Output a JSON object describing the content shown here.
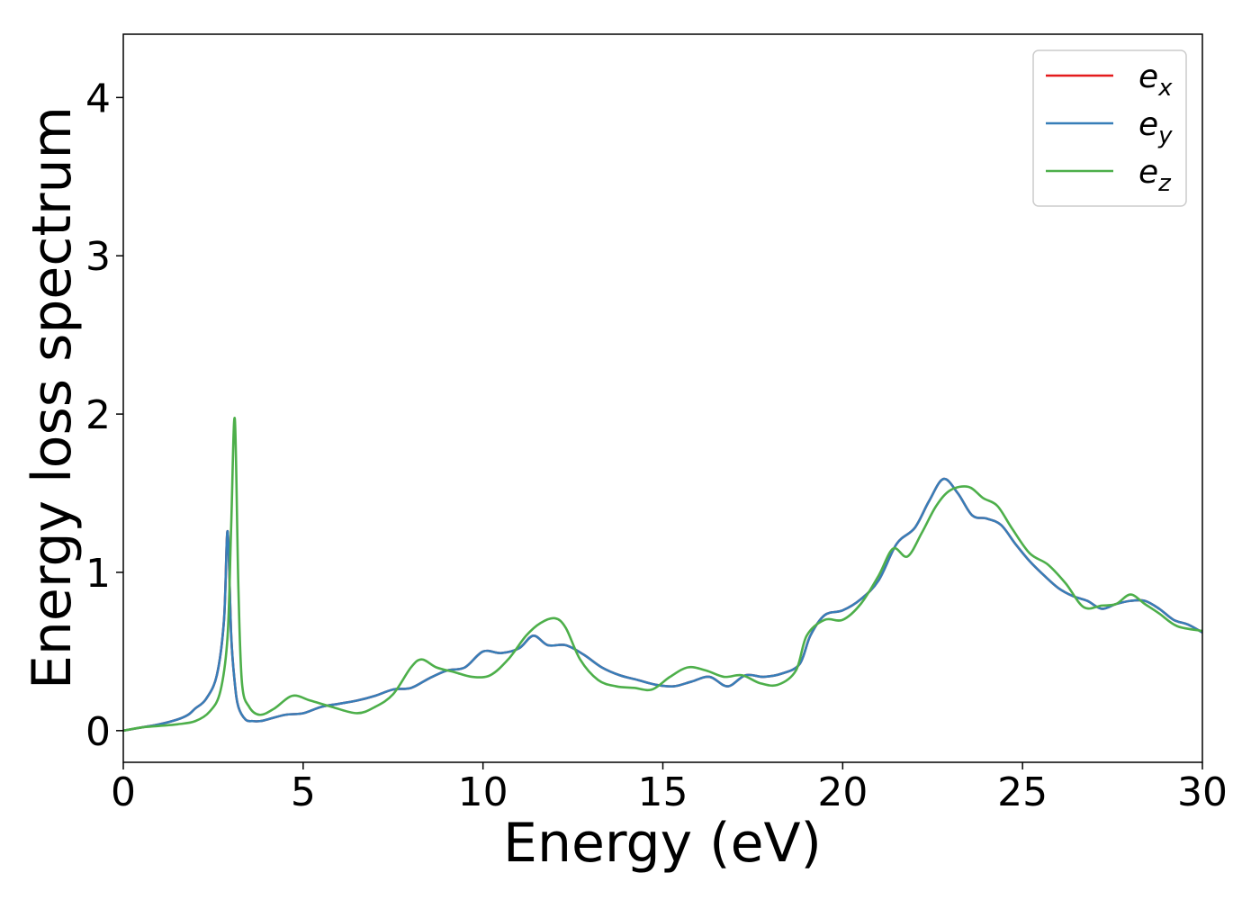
{
  "chart_data": {
    "type": "line",
    "xlabel": "Energy (eV)",
    "ylabel": "Energy loss spectrum",
    "xlim": [
      0,
      30
    ],
    "ylim": [
      -0.2,
      4.4
    ],
    "x_ticks": [
      0,
      5,
      10,
      15,
      20,
      25,
      30
    ],
    "y_ticks": [
      0,
      1,
      2,
      3,
      4
    ],
    "grid": false,
    "legend_placement": "top-right",
    "series": [
      {
        "name": "e_x",
        "label_base": "e",
        "label_sub": "x",
        "color": "#e41a1c",
        "x": [
          0,
          0.5,
          1,
          1.5,
          1.8,
          2.0,
          2.3,
          2.6,
          2.8,
          2.9,
          3.0,
          3.1,
          3.2,
          3.4,
          3.6,
          3.8,
          4.0,
          4.5,
          5.0,
          5.5,
          6.0,
          6.5,
          7.0,
          7.5,
          8.0,
          8.5,
          9.0,
          9.5,
          10.0,
          10.5,
          11.0,
          11.4,
          11.8,
          12.3,
          12.8,
          13.3,
          13.8,
          14.3,
          14.8,
          15.3,
          15.8,
          16.3,
          16.8,
          17.3,
          17.8,
          18.3,
          18.8,
          19.1,
          19.5,
          20.0,
          20.5,
          21.0,
          21.5,
          22.0,
          22.4,
          22.8,
          23.2,
          23.6,
          24.0,
          24.4,
          24.8,
          25.2,
          25.6,
          26.0,
          26.4,
          26.8,
          27.2,
          27.6,
          28.0,
          28.4,
          28.8,
          29.2,
          29.6,
          30.0
        ],
        "y": [
          0.0,
          0.02,
          0.04,
          0.07,
          0.1,
          0.14,
          0.2,
          0.35,
          0.7,
          1.26,
          0.6,
          0.3,
          0.15,
          0.07,
          0.06,
          0.06,
          0.07,
          0.1,
          0.11,
          0.15,
          0.17,
          0.19,
          0.22,
          0.26,
          0.27,
          0.33,
          0.38,
          0.4,
          0.5,
          0.49,
          0.52,
          0.6,
          0.54,
          0.54,
          0.48,
          0.4,
          0.35,
          0.32,
          0.29,
          0.28,
          0.31,
          0.34,
          0.28,
          0.35,
          0.34,
          0.36,
          0.42,
          0.6,
          0.73,
          0.76,
          0.83,
          0.95,
          1.18,
          1.28,
          1.45,
          1.59,
          1.5,
          1.36,
          1.34,
          1.3,
          1.18,
          1.07,
          0.98,
          0.9,
          0.85,
          0.82,
          0.77,
          0.8,
          0.82,
          0.82,
          0.77,
          0.7,
          0.67,
          0.62
        ]
      },
      {
        "name": "e_y",
        "label_base": "e",
        "label_sub": "y",
        "color": "#377eb8",
        "x": [
          0,
          0.5,
          1,
          1.5,
          1.8,
          2.0,
          2.3,
          2.6,
          2.8,
          2.9,
          3.0,
          3.1,
          3.2,
          3.4,
          3.6,
          3.8,
          4.0,
          4.5,
          5.0,
          5.5,
          6.0,
          6.5,
          7.0,
          7.5,
          8.0,
          8.5,
          9.0,
          9.5,
          10.0,
          10.5,
          11.0,
          11.4,
          11.8,
          12.3,
          12.8,
          13.3,
          13.8,
          14.3,
          14.8,
          15.3,
          15.8,
          16.3,
          16.8,
          17.3,
          17.8,
          18.3,
          18.8,
          19.1,
          19.5,
          20.0,
          20.5,
          21.0,
          21.5,
          22.0,
          22.4,
          22.8,
          23.2,
          23.6,
          24.0,
          24.4,
          24.8,
          25.2,
          25.6,
          26.0,
          26.4,
          26.8,
          27.2,
          27.6,
          28.0,
          28.4,
          28.8,
          29.2,
          29.6,
          30.0
        ],
        "y": [
          0.0,
          0.02,
          0.04,
          0.07,
          0.1,
          0.14,
          0.2,
          0.35,
          0.7,
          1.26,
          0.6,
          0.3,
          0.15,
          0.07,
          0.06,
          0.06,
          0.07,
          0.1,
          0.11,
          0.15,
          0.17,
          0.19,
          0.22,
          0.26,
          0.27,
          0.33,
          0.38,
          0.4,
          0.5,
          0.49,
          0.52,
          0.6,
          0.54,
          0.54,
          0.48,
          0.4,
          0.35,
          0.32,
          0.29,
          0.28,
          0.31,
          0.34,
          0.28,
          0.35,
          0.34,
          0.36,
          0.42,
          0.6,
          0.73,
          0.76,
          0.83,
          0.95,
          1.18,
          1.28,
          1.45,
          1.59,
          1.5,
          1.36,
          1.34,
          1.3,
          1.18,
          1.07,
          0.98,
          0.9,
          0.85,
          0.82,
          0.77,
          0.8,
          0.82,
          0.82,
          0.77,
          0.7,
          0.67,
          0.62
        ]
      },
      {
        "name": "e_z",
        "label_base": "e",
        "label_sub": "z",
        "color": "#4daf4a",
        "x": [
          0,
          0.5,
          1,
          1.5,
          2.0,
          2.4,
          2.7,
          2.9,
          3.0,
          3.1,
          3.2,
          3.3,
          3.5,
          3.8,
          4.2,
          4.7,
          5.2,
          5.8,
          6.5,
          7.0,
          7.5,
          8.0,
          8.3,
          8.7,
          9.2,
          9.7,
          10.2,
          10.7,
          11.2,
          11.6,
          12.0,
          12.3,
          12.7,
          13.2,
          13.7,
          14.2,
          14.7,
          15.2,
          15.7,
          16.2,
          16.7,
          17.2,
          17.7,
          18.2,
          18.7,
          19.0,
          19.5,
          20.0,
          20.5,
          21.0,
          21.4,
          21.8,
          22.2,
          22.6,
          23.0,
          23.5,
          23.9,
          24.3,
          24.7,
          25.2,
          25.7,
          26.2,
          26.7,
          27.2,
          27.6,
          28.0,
          28.4,
          28.8,
          29.3,
          30.0
        ],
        "y": [
          0.0,
          0.02,
          0.03,
          0.04,
          0.06,
          0.12,
          0.25,
          0.6,
          1.3,
          1.97,
          0.9,
          0.3,
          0.15,
          0.1,
          0.14,
          0.22,
          0.19,
          0.15,
          0.11,
          0.15,
          0.23,
          0.4,
          0.45,
          0.4,
          0.37,
          0.34,
          0.35,
          0.45,
          0.6,
          0.68,
          0.71,
          0.65,
          0.45,
          0.32,
          0.28,
          0.27,
          0.26,
          0.34,
          0.4,
          0.38,
          0.34,
          0.35,
          0.3,
          0.29,
          0.38,
          0.6,
          0.7,
          0.7,
          0.8,
          0.98,
          1.15,
          1.1,
          1.25,
          1.42,
          1.52,
          1.54,
          1.47,
          1.42,
          1.28,
          1.12,
          1.05,
          0.93,
          0.78,
          0.79,
          0.8,
          0.86,
          0.8,
          0.74,
          0.66,
          0.63
        ]
      }
    ]
  }
}
